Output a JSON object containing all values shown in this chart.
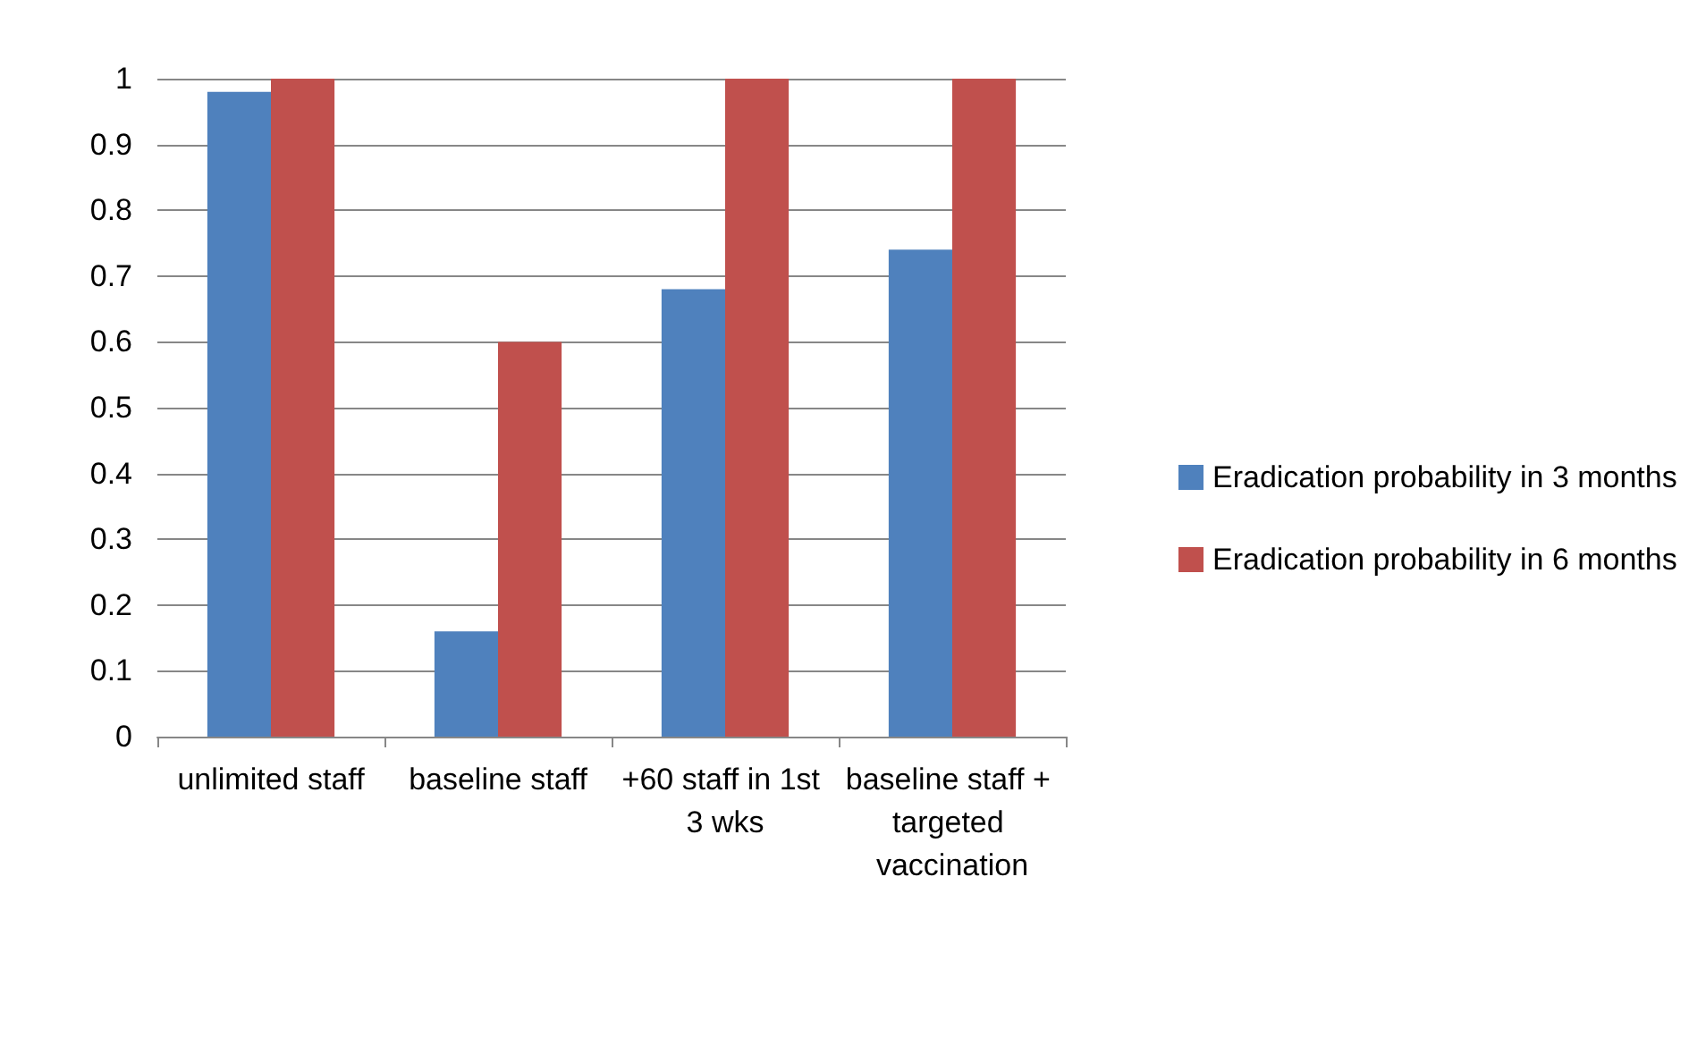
{
  "chart_data": {
    "type": "bar",
    "categories": [
      "unlimited staff",
      "baseline staff",
      "+60 staff in 1st 3 wks",
      "baseline staff + targeted vaccination"
    ],
    "series": [
      {
        "name": "Eradication probability in 3 months",
        "color": "#4f81bd",
        "values": [
          0.98,
          0.16,
          0.68,
          0.74
        ]
      },
      {
        "name": "Eradication probability in 6 months",
        "color": "#c0504d",
        "values": [
          1,
          0.6,
          1,
          1
        ]
      }
    ],
    "ylim": [
      0,
      1
    ],
    "yticks": [
      0,
      0.1,
      0.2,
      0.3,
      0.4,
      0.5,
      0.6,
      0.7,
      0.8,
      0.9,
      1
    ],
    "grid": "y",
    "legend": "right"
  }
}
